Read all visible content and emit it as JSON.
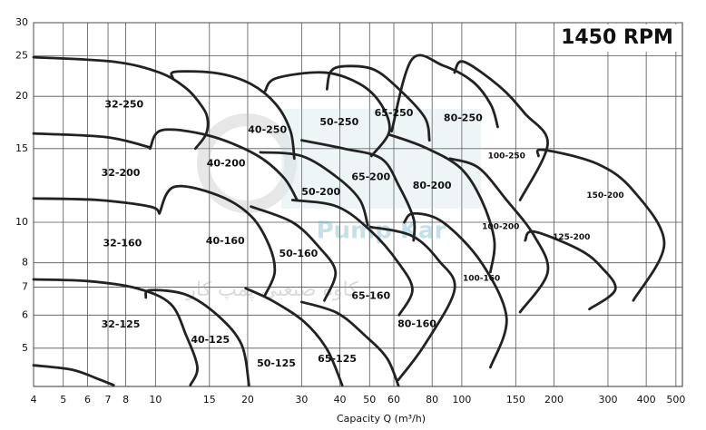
{
  "chart_data": {
    "type": "line",
    "title": "1450 RPM",
    "x_label": "Capacity Q (m³/h)",
    "watermark": "Pump Kar",
    "watermark_subtitle": "کاوه صنعتی پمپ کار",
    "log_x": true,
    "log_y": true,
    "grid": true,
    "color": "#222222",
    "xlim": [
      4,
      525
    ],
    "ylim": [
      4.05,
      30
    ],
    "xticks": [
      4,
      5,
      6,
      7,
      8,
      10,
      15,
      20,
      30,
      40,
      50,
      60,
      80,
      100,
      150,
      200,
      300,
      400,
      500
    ],
    "yticks": [
      5,
      6,
      7,
      8,
      10,
      15,
      20,
      25,
      30
    ],
    "regions": [
      {
        "name": "32-250",
        "label_q": 7.9,
        "label_h": 19.1,
        "q": [
          4,
          7.3,
          10.3,
          12.6,
          14.2,
          14.8,
          14.6,
          13.5
        ],
        "h": [
          24.8,
          24.2,
          22.8,
          20.9,
          18.9,
          17.6,
          16.2,
          15
        ]
      },
      {
        "name": "40-250",
        "label_q": 23.2,
        "label_h": 16.6,
        "q": [
          11.4,
          11.6,
          16,
          20.5,
          24.8,
          27.6,
          28.4
        ],
        "h": [
          22.1,
          22.9,
          22.7,
          21.4,
          19.1,
          16.5,
          14.2
        ]
      },
      {
        "name": "50-250",
        "label_q": 39.8,
        "label_h": 17.3,
        "q": [
          22.8,
          24.8,
          35.6,
          46.5,
          54.6,
          58,
          50.7
        ],
        "h": [
          20.6,
          22.1,
          22.8,
          21.4,
          19.1,
          16.5,
          14.4
        ]
      },
      {
        "name": "65-250",
        "label_q": 60,
        "label_h": 18.2,
        "q": [
          36.3,
          37.3,
          41.2,
          51.4,
          62.4,
          75.7,
          78.4
        ],
        "h": [
          20.8,
          22.9,
          23.6,
          23.2,
          20.8,
          17.8,
          15.7
        ]
      },
      {
        "name": "80-250",
        "label_q": 101,
        "label_h": 17.7,
        "q": [
          59,
          68.7,
          86.8,
          108.5,
          124.4,
          131
        ],
        "h": [
          16.5,
          24.5,
          23.7,
          21.7,
          19.1,
          16.9
        ]
      },
      {
        "name": "100-250",
        "label_q": 140,
        "label_h": 14.4,
        "q": [
          94.7,
          101.4,
          133,
          160.6,
          190.7,
          155
        ],
        "h": [
          22.8,
          24.2,
          21.1,
          18.2,
          15.4,
          11.3
        ]
      },
      {
        "name": "150-200",
        "label_q": 294,
        "label_h": 11.6,
        "q": [
          178,
          184,
          276.5,
          363,
          458,
          363
        ],
        "h": [
          14.4,
          14.9,
          13.8,
          11.9,
          8.9,
          6.5
        ]
      },
      {
        "name": "125-200",
        "label_q": 228,
        "label_h": 9.2,
        "q": [
          161,
          172,
          242,
          286,
          317,
          261
        ],
        "h": [
          9.05,
          9.5,
          8.6,
          7.8,
          6.9,
          6.2
        ]
      },
      {
        "name": "100-200",
        "label_q": 134,
        "label_h": 9.75,
        "q": [
          91.5,
          113.4,
          140,
          172,
          190.7,
          155
        ],
        "h": [
          14.2,
          13.5,
          11.3,
          9.3,
          7.6,
          6.1
        ]
      },
      {
        "name": "100-160",
        "label_q": 116,
        "label_h": 7.34,
        "q": [
          64.9,
          69.6,
          86.8,
          116,
          140,
          124
        ],
        "h": [
          10,
          10.5,
          10,
          8,
          5.9,
          4.5
        ]
      },
      {
        "name": "80-200",
        "label_q": 80,
        "label_h": 12.2,
        "q": [
          58,
          75.7,
          98.8,
          116,
          127.7,
          124
        ],
        "h": [
          16.2,
          15.1,
          13.5,
          11.3,
          9.05,
          7.6
        ]
      },
      {
        "name": "65-200",
        "label_q": 50.5,
        "label_h": 12.8,
        "q": [
          30,
          41.2,
          54.6,
          62.4,
          69.6,
          69.6
        ],
        "h": [
          15.7,
          15,
          14.2,
          12.2,
          10.2,
          9.05
        ]
      },
      {
        "name": "50-200",
        "label_q": 34.7,
        "label_h": 11.8,
        "q": [
          22,
          30,
          39.2,
          46.5,
          49.3
        ],
        "h": [
          14.7,
          14.4,
          12.8,
          11.3,
          9.85
        ]
      },
      {
        "name": "40-200",
        "label_q": 17,
        "label_h": 13.8,
        "q": [
          9.6,
          10.5,
          15,
          21.3,
          26.2,
          29
        ],
        "h": [
          15,
          16.6,
          16.1,
          14.5,
          12.8,
          11.3
        ]
      },
      {
        "name": "32-200",
        "label_q": 7.7,
        "label_h": 13.1,
        "q": [
          4,
          6.9,
          9.6
        ],
        "h": [
          16.3,
          15.98,
          15.1
        ]
      },
      {
        "name": "40-160",
        "label_q": 16.9,
        "label_h": 9.0,
        "q": [
          10.3,
          11.5,
          16,
          20.5,
          23.5,
          24.5,
          22.8
        ],
        "h": [
          10.5,
          12.15,
          11.6,
          10.35,
          8.8,
          7.6,
          6.7
        ]
      },
      {
        "name": "32-160",
        "label_q": 7.8,
        "label_h": 8.9,
        "q": [
          4,
          6.5,
          9.6,
          10.3
        ],
        "h": [
          11.4,
          11.3,
          10.9,
          10.5
        ]
      },
      {
        "name": "50-160",
        "label_q": 29.3,
        "label_h": 8.4,
        "q": [
          20.5,
          28,
          34.3,
          38.7,
          35.6
        ],
        "h": [
          10.9,
          10,
          8.7,
          7.6,
          6.5
        ]
      },
      {
        "name": "65-160",
        "label_q": 50.5,
        "label_h": 6.65,
        "q": [
          28,
          39.2,
          50.7,
          62.1,
          69,
          62.4
        ],
        "h": [
          11.3,
          10.9,
          9.5,
          8,
          6.9,
          6.0
        ]
      },
      {
        "name": "80-160",
        "label_q": 71.4,
        "label_h": 5.7,
        "q": [
          50.2,
          68.7,
          84.1,
          94.7,
          75.7,
          62.1
        ],
        "h": [
          9.75,
          9.28,
          8.1,
          6.9,
          5.1,
          4.2
        ]
      },
      {
        "name": "65-125",
        "label_q": 39.2,
        "label_h": 4.71,
        "q": [
          30,
          39.2,
          48.3,
          57,
          62.1
        ],
        "h": [
          6.45,
          6.07,
          5.36,
          4.73,
          4.07
        ]
      },
      {
        "name": "50-125",
        "label_q": 24.8,
        "label_h": 4.59,
        "q": [
          19.7,
          24,
          30.6,
          36.3,
          40.7
        ],
        "h": [
          6.95,
          6.5,
          5.78,
          4.97,
          4.08
        ]
      },
      {
        "name": "40-125",
        "label_q": 15.1,
        "label_h": 5.23,
        "q": [
          9.3,
          9.6,
          12.6,
          16,
          19.1,
          20.2
        ],
        "h": [
          6.61,
          6.88,
          6.71,
          5.98,
          5.1,
          4.08
        ]
      },
      {
        "name": "32-125",
        "label_q": 7.7,
        "label_h": 5.69,
        "q": [
          4,
          6.05,
          8.7,
          11.2,
          12.6,
          13.7,
          13
        ],
        "h": [
          7.3,
          7.23,
          6.95,
          6.38,
          5.36,
          4.5,
          4.08
        ]
      },
      {
        "q": [
          4,
          5.35,
          6.5,
          7.3
        ],
        "h": [
          4.55,
          4.44,
          4.22,
          4.08
        ]
      }
    ]
  }
}
